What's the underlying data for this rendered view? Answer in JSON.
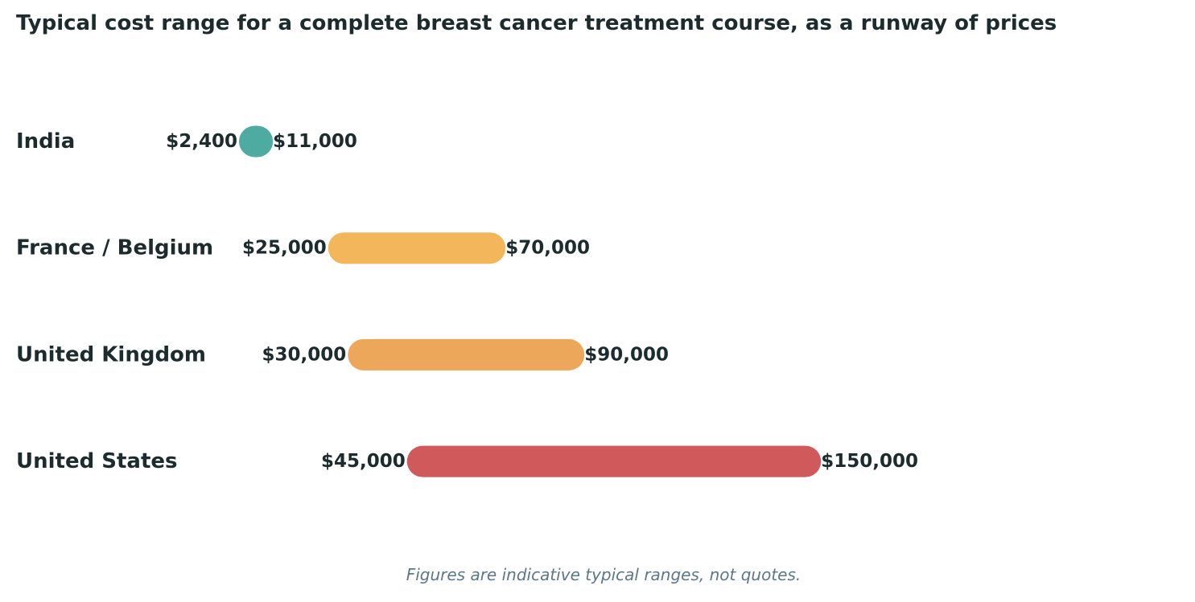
{
  "chart_data": {
    "type": "bar",
    "subtype": "range",
    "title": "Typical cost range for a complete breast cancer treatment course, as a runway of prices",
    "footnote": "Figures are indicative typical ranges, not quotes.",
    "xlabel": "",
    "ylabel": "",
    "grid": false,
    "legend": "none",
    "categories": [
      "India",
      "France / Belgium",
      "United Kingdom",
      "United States"
    ],
    "series": [
      {
        "values": [
          {
            "low": 2400,
            "high": 11000,
            "low_label": "$2,400",
            "high_label": "$11,000",
            "color": "#4eaba1"
          },
          {
            "low": 25000,
            "high": 70000,
            "low_label": "$25,000",
            "high_label": "$70,000",
            "color": "#f3b65b"
          },
          {
            "low": 30000,
            "high": 90000,
            "low_label": "$30,000",
            "high_label": "$90,000",
            "color": "#eca75a"
          },
          {
            "low": 45000,
            "high": 150000,
            "low_label": "$45,000",
            "high_label": "$150,000",
            "color": "#d05a5b"
          }
        ]
      }
    ]
  }
}
